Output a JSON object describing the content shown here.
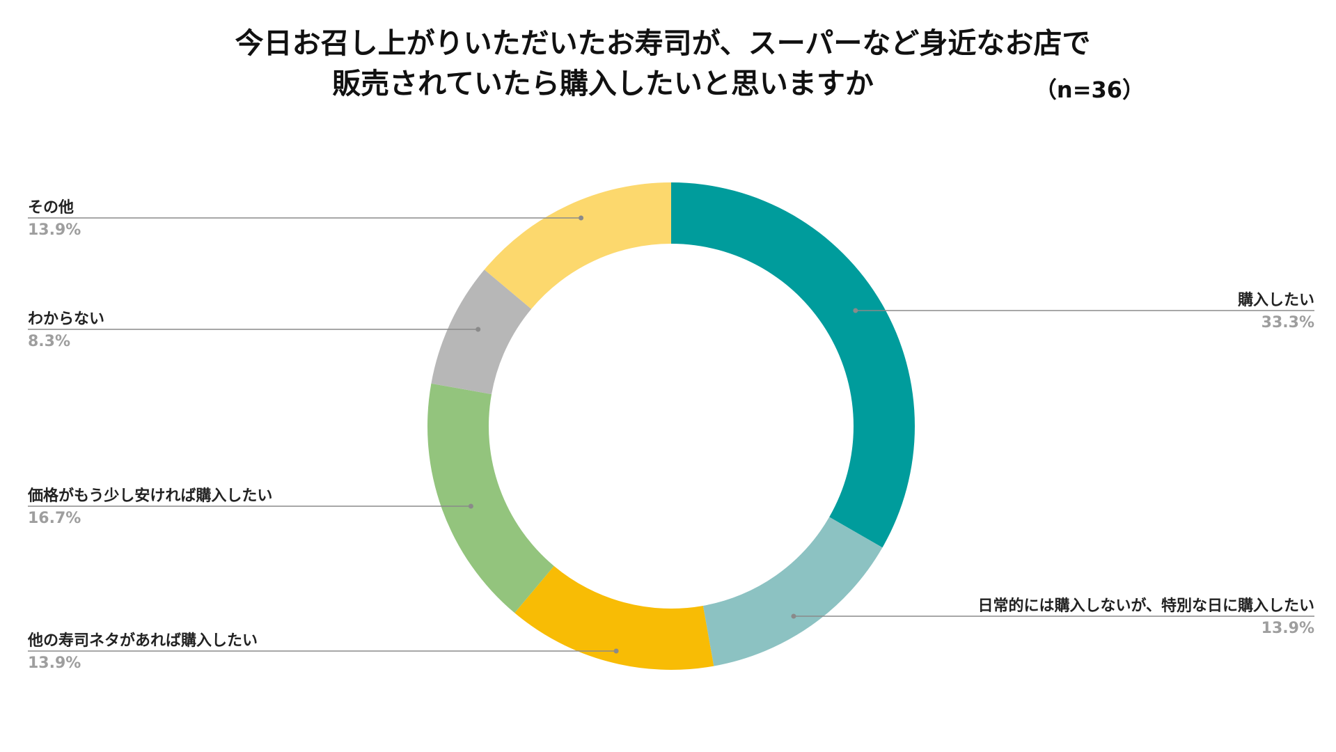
{
  "chart_data": {
    "type": "pie",
    "donut": true,
    "title_lines": [
      "今日お召し上がりいただいたお寿司が、スーパーなど身近なお店で",
      "販売されていたら購入したいと思いますか"
    ],
    "sample_size": "（n=36）",
    "slices": [
      {
        "label": "購入したい",
        "value": 33.3,
        "display": "33.3%",
        "color": "#009c9c",
        "side": "right"
      },
      {
        "label": "日常的には購入しないが、特別な日に購入したい",
        "value": 13.9,
        "display": "13.9%",
        "color": "#8cc2c2",
        "side": "right"
      },
      {
        "label": "他の寿司ネタがあれば購入したい",
        "value": 13.9,
        "display": "13.9%",
        "color": "#f8bc05",
        "side": "left"
      },
      {
        "label": "価格がもう少し安ければ購入したい",
        "value": 16.7,
        "display": "16.7%",
        "color": "#93c47d",
        "side": "left"
      },
      {
        "label": "わからない",
        "value": 8.3,
        "display": "8.3%",
        "color": "#b7b7b7",
        "side": "left"
      },
      {
        "label": "その他",
        "value": 13.9,
        "display": "13.9%",
        "color": "#fcd86d",
        "side": "left"
      }
    ],
    "start_angle": "12 o'clock",
    "direction": "clockwise",
    "legend": "callout labels with leader lines"
  }
}
